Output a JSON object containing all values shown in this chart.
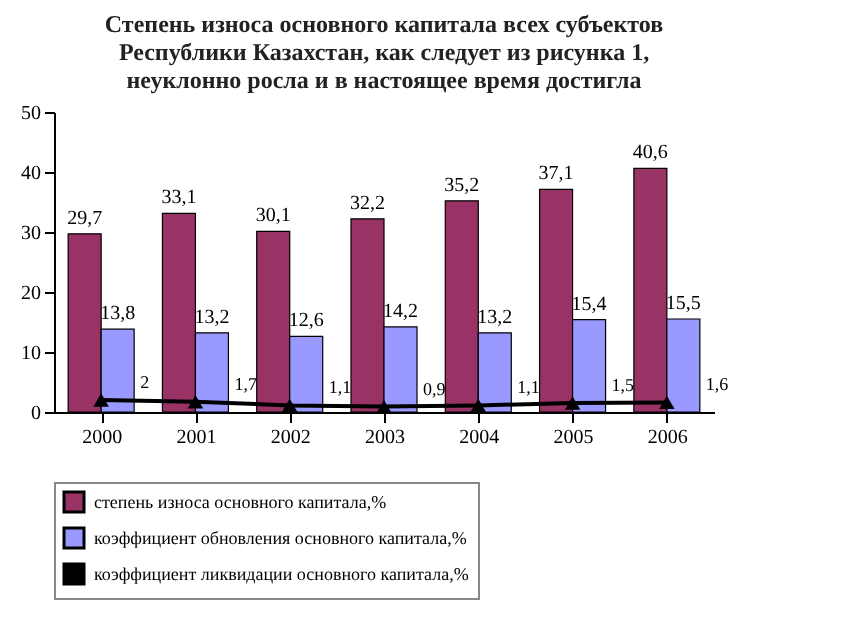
{
  "chart_data": {
    "type": "bar",
    "title": [
      "Степень износа основного капитала всех субъектов",
      "Республики Казахстан, как следует из рисунка 1,",
      "неуклонно росла и в настоящее время достигла"
    ],
    "categories": [
      "2000",
      "2001",
      "2002",
      "2003",
      "2004",
      "2005",
      "2006"
    ],
    "series": [
      {
        "name": "степень износа основного капитала,%",
        "color": "#993366",
        "values": [
          29.7,
          33.1,
          30.1,
          32.2,
          35.2,
          37.1,
          40.6
        ],
        "value_labels": [
          "29,7",
          "33,1",
          "30,1",
          "32,2",
          "35,2",
          "37,1",
          "40,6"
        ]
      },
      {
        "name": "коэффициент обновления основного капитала,%",
        "color": "#9999ff",
        "values": [
          13.8,
          13.2,
          12.6,
          14.2,
          13.2,
          15.4,
          15.5
        ],
        "value_labels": [
          "13,8",
          "13,2",
          "12,6",
          "14,2",
          "13,2",
          "15,4",
          "15,5"
        ]
      },
      {
        "name": "коэффициент ликвидации основного капитала,%",
        "color": "#000000",
        "type": "line",
        "marker": "triangle",
        "values": [
          2,
          1.7,
          1.1,
          0.9,
          1.1,
          1.5,
          1.6
        ],
        "value_labels": [
          "2",
          "1,7",
          "1,1",
          "0,9",
          "1,1",
          "1,5",
          "1,6"
        ]
      }
    ],
    "ylim": [
      0,
      50
    ],
    "yticks": [
      0,
      10,
      20,
      30,
      40,
      50
    ],
    "grid": false,
    "legend": "bottom"
  }
}
